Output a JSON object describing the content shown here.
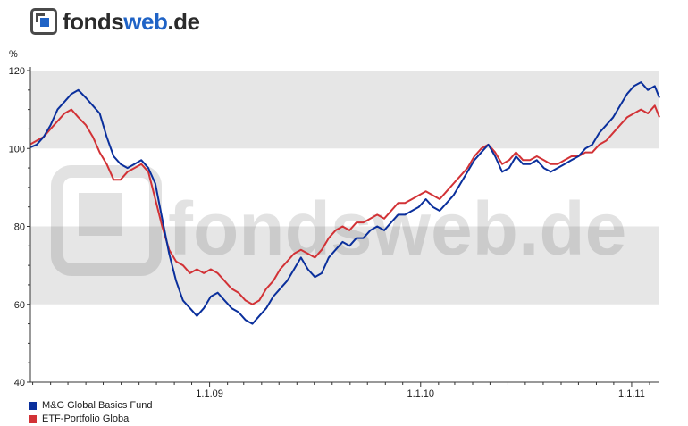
{
  "logo": {
    "part1": "fonds",
    "part2": "web",
    "part3": ".de"
  },
  "watermark_text": "fondsweb.de",
  "chart_data": {
    "type": "line",
    "ylabel": "%",
    "ylim": [
      40,
      120
    ],
    "xlim": [
      "2008-02-26",
      "2011-02-18"
    ],
    "y_ticks": [
      "40",
      "60",
      "80",
      "100",
      "120"
    ],
    "x_ticks": [
      {
        "label": "1.1.09",
        "date": "2009-01-01"
      },
      {
        "label": "1.1.10",
        "date": "2010-01-01"
      },
      {
        "label": "1.1.11",
        "date": "2011-01-01"
      }
    ],
    "grid": "alternating horizontal bands",
    "legend_position": "bottom-left",
    "series": [
      {
        "name": "M&G Global Basics Fund",
        "color": "#0a2f9c",
        "points": [
          [
            "2008-02-26",
            100.3
          ],
          [
            "2008-03-08",
            101
          ],
          [
            "2008-03-20",
            103
          ],
          [
            "2008-04-01",
            106
          ],
          [
            "2008-04-13",
            110
          ],
          [
            "2008-04-25",
            112
          ],
          [
            "2008-05-07",
            114
          ],
          [
            "2008-05-19",
            115
          ],
          [
            "2008-06-01",
            113
          ],
          [
            "2008-06-13",
            111
          ],
          [
            "2008-06-25",
            109
          ],
          [
            "2008-07-07",
            103
          ],
          [
            "2008-07-19",
            98
          ],
          [
            "2008-07-31",
            96
          ],
          [
            "2008-08-12",
            95
          ],
          [
            "2008-08-24",
            96
          ],
          [
            "2008-09-05",
            97
          ],
          [
            "2008-09-17",
            95
          ],
          [
            "2008-09-29",
            91
          ],
          [
            "2008-10-11",
            82
          ],
          [
            "2008-10-23",
            73
          ],
          [
            "2008-11-04",
            66
          ],
          [
            "2008-11-16",
            61
          ],
          [
            "2008-11-28",
            59
          ],
          [
            "2008-12-10",
            57
          ],
          [
            "2008-12-22",
            59
          ],
          [
            "2009-01-03",
            62
          ],
          [
            "2009-01-15",
            63
          ],
          [
            "2009-01-27",
            61
          ],
          [
            "2009-02-08",
            59
          ],
          [
            "2009-02-20",
            58
          ],
          [
            "2009-03-04",
            56
          ],
          [
            "2009-03-16",
            55
          ],
          [
            "2009-03-28",
            57
          ],
          [
            "2009-04-09",
            59
          ],
          [
            "2009-04-21",
            62
          ],
          [
            "2009-05-03",
            64
          ],
          [
            "2009-05-15",
            66
          ],
          [
            "2009-05-27",
            69
          ],
          [
            "2009-06-08",
            72
          ],
          [
            "2009-06-20",
            69
          ],
          [
            "2009-07-02",
            67
          ],
          [
            "2009-07-14",
            68
          ],
          [
            "2009-07-26",
            72
          ],
          [
            "2009-08-07",
            74
          ],
          [
            "2009-08-19",
            76
          ],
          [
            "2009-08-31",
            75
          ],
          [
            "2009-09-12",
            77
          ],
          [
            "2009-09-24",
            77
          ],
          [
            "2009-10-06",
            79
          ],
          [
            "2009-10-18",
            80
          ],
          [
            "2009-10-30",
            79
          ],
          [
            "2009-11-11",
            81
          ],
          [
            "2009-11-23",
            83
          ],
          [
            "2009-12-05",
            83
          ],
          [
            "2009-12-17",
            84
          ],
          [
            "2009-12-29",
            85
          ],
          [
            "2010-01-10",
            87
          ],
          [
            "2010-01-22",
            85
          ],
          [
            "2010-02-03",
            84
          ],
          [
            "2010-02-15",
            86
          ],
          [
            "2010-02-27",
            88
          ],
          [
            "2010-03-11",
            91
          ],
          [
            "2010-03-23",
            94
          ],
          [
            "2010-04-04",
            97
          ],
          [
            "2010-04-16",
            99
          ],
          [
            "2010-04-28",
            101
          ],
          [
            "2010-05-10",
            98
          ],
          [
            "2010-05-22",
            94
          ],
          [
            "2010-06-03",
            95
          ],
          [
            "2010-06-15",
            98
          ],
          [
            "2010-06-27",
            96
          ],
          [
            "2010-07-09",
            96
          ],
          [
            "2010-07-21",
            97
          ],
          [
            "2010-08-02",
            95
          ],
          [
            "2010-08-14",
            94
          ],
          [
            "2010-08-26",
            95
          ],
          [
            "2010-09-07",
            96
          ],
          [
            "2010-09-19",
            97
          ],
          [
            "2010-10-01",
            98
          ],
          [
            "2010-10-13",
            100
          ],
          [
            "2010-10-25",
            101
          ],
          [
            "2010-11-06",
            104
          ],
          [
            "2010-11-18",
            106
          ],
          [
            "2010-11-30",
            108
          ],
          [
            "2010-12-12",
            111
          ],
          [
            "2010-12-24",
            114
          ],
          [
            "2011-01-05",
            116
          ],
          [
            "2011-01-17",
            117
          ],
          [
            "2011-01-29",
            115
          ],
          [
            "2011-02-10",
            116
          ],
          [
            "2011-02-18",
            113
          ]
        ]
      },
      {
        "name": "ETF-Portfolio Global",
        "color": "#d23236",
        "points": [
          [
            "2008-02-26",
            101.1
          ],
          [
            "2008-03-08",
            102
          ],
          [
            "2008-03-20",
            103
          ],
          [
            "2008-04-01",
            105
          ],
          [
            "2008-04-13",
            107
          ],
          [
            "2008-04-25",
            109
          ],
          [
            "2008-05-07",
            110
          ],
          [
            "2008-05-19",
            108
          ],
          [
            "2008-06-01",
            106
          ],
          [
            "2008-06-13",
            103
          ],
          [
            "2008-06-25",
            99
          ],
          [
            "2008-07-07",
            96
          ],
          [
            "2008-07-19",
            92
          ],
          [
            "2008-07-31",
            92
          ],
          [
            "2008-08-12",
            94
          ],
          [
            "2008-08-24",
            95
          ],
          [
            "2008-09-05",
            96
          ],
          [
            "2008-09-17",
            94
          ],
          [
            "2008-09-29",
            87
          ],
          [
            "2008-10-11",
            80
          ],
          [
            "2008-10-23",
            74
          ],
          [
            "2008-11-04",
            71
          ],
          [
            "2008-11-16",
            70
          ],
          [
            "2008-11-28",
            68
          ],
          [
            "2008-12-10",
            69
          ],
          [
            "2008-12-22",
            68
          ],
          [
            "2009-01-03",
            69
          ],
          [
            "2009-01-15",
            68
          ],
          [
            "2009-01-27",
            66
          ],
          [
            "2009-02-08",
            64
          ],
          [
            "2009-02-20",
            63
          ],
          [
            "2009-03-04",
            61
          ],
          [
            "2009-03-16",
            60
          ],
          [
            "2009-03-28",
            61
          ],
          [
            "2009-04-09",
            64
          ],
          [
            "2009-04-21",
            66
          ],
          [
            "2009-05-03",
            69
          ],
          [
            "2009-05-15",
            71
          ],
          [
            "2009-05-27",
            73
          ],
          [
            "2009-06-08",
            74
          ],
          [
            "2009-06-20",
            73
          ],
          [
            "2009-07-02",
            72
          ],
          [
            "2009-07-14",
            74
          ],
          [
            "2009-07-26",
            77
          ],
          [
            "2009-08-07",
            79
          ],
          [
            "2009-08-19",
            80
          ],
          [
            "2009-08-31",
            79
          ],
          [
            "2009-09-12",
            81
          ],
          [
            "2009-09-24",
            81
          ],
          [
            "2009-10-06",
            82
          ],
          [
            "2009-10-18",
            83
          ],
          [
            "2009-10-30",
            82
          ],
          [
            "2009-11-11",
            84
          ],
          [
            "2009-11-23",
            86
          ],
          [
            "2009-12-05",
            86
          ],
          [
            "2009-12-17",
            87
          ],
          [
            "2009-12-29",
            88
          ],
          [
            "2010-01-10",
            89
          ],
          [
            "2010-01-22",
            88
          ],
          [
            "2010-02-03",
            87
          ],
          [
            "2010-02-15",
            89
          ],
          [
            "2010-02-27",
            91
          ],
          [
            "2010-03-11",
            93
          ],
          [
            "2010-03-23",
            95
          ],
          [
            "2010-04-04",
            98
          ],
          [
            "2010-04-16",
            100
          ],
          [
            "2010-04-28",
            101
          ],
          [
            "2010-05-10",
            99
          ],
          [
            "2010-05-22",
            96
          ],
          [
            "2010-06-03",
            97
          ],
          [
            "2010-06-15",
            99
          ],
          [
            "2010-06-27",
            97
          ],
          [
            "2010-07-09",
            97
          ],
          [
            "2010-07-21",
            98
          ],
          [
            "2010-08-02",
            97
          ],
          [
            "2010-08-14",
            96
          ],
          [
            "2010-08-26",
            96
          ],
          [
            "2010-09-07",
            97
          ],
          [
            "2010-09-19",
            98
          ],
          [
            "2010-10-01",
            98
          ],
          [
            "2010-10-13",
            99
          ],
          [
            "2010-10-25",
            99
          ],
          [
            "2010-11-06",
            101
          ],
          [
            "2010-11-18",
            102
          ],
          [
            "2010-11-30",
            104
          ],
          [
            "2010-12-12",
            106
          ],
          [
            "2010-12-24",
            108
          ],
          [
            "2011-01-05",
            109
          ],
          [
            "2011-01-17",
            110
          ],
          [
            "2011-01-29",
            109
          ],
          [
            "2011-02-10",
            111
          ],
          [
            "2011-02-18",
            108
          ]
        ]
      }
    ]
  }
}
